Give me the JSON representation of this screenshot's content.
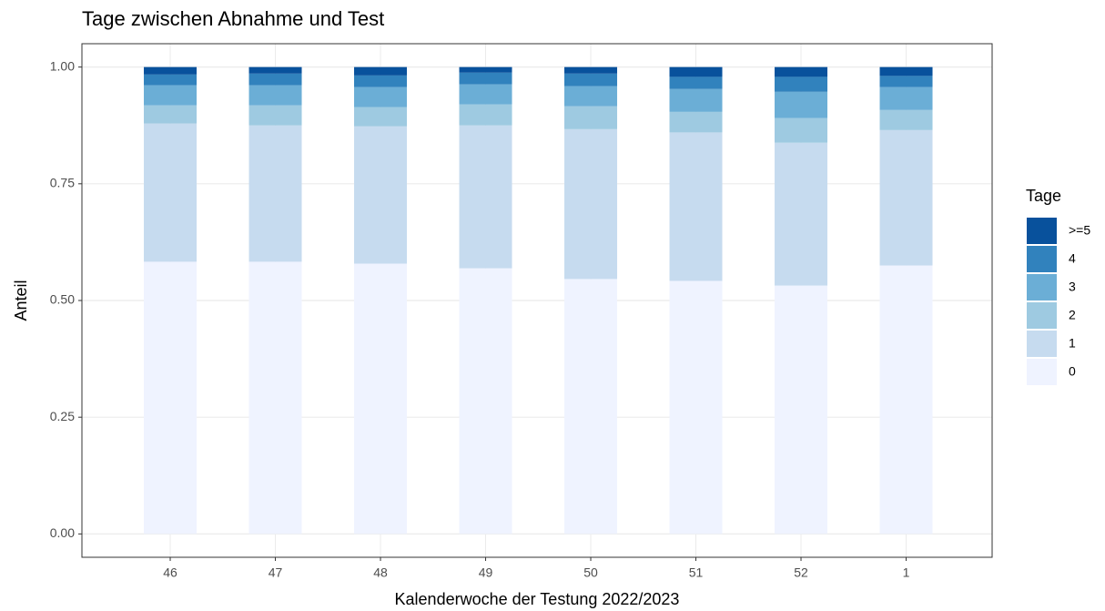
{
  "chart_data": {
    "type": "stacked_bar",
    "title": "Tage zwischen Abnahme und Test",
    "x_label": "Kalenderwoche der Testung 2022/2023",
    "y_label": "Anteil",
    "legend_title": "Tage",
    "categories": [
      "46",
      "47",
      "48",
      "49",
      "50",
      "51",
      "52",
      "1"
    ],
    "series": [
      {
        "name": "0",
        "color": "#eff3ff",
        "values": [
          0.583,
          0.583,
          0.579,
          0.569,
          0.546,
          0.542,
          0.532,
          0.575
        ]
      },
      {
        "name": "1",
        "color": "#c6dbef",
        "values": [
          0.296,
          0.292,
          0.294,
          0.306,
          0.321,
          0.318,
          0.306,
          0.29
        ]
      },
      {
        "name": "2",
        "color": "#9ecae1",
        "values": [
          0.039,
          0.043,
          0.041,
          0.045,
          0.049,
          0.044,
          0.053,
          0.043
        ]
      },
      {
        "name": "3",
        "color": "#6baed6",
        "values": [
          0.043,
          0.043,
          0.043,
          0.043,
          0.043,
          0.049,
          0.056,
          0.049
        ]
      },
      {
        "name": "4",
        "color": "#3182bd",
        "values": [
          0.023,
          0.025,
          0.025,
          0.025,
          0.027,
          0.026,
          0.032,
          0.024
        ]
      },
      {
        "name": ">=5",
        "color": "#08519c",
        "values": [
          0.016,
          0.014,
          0.018,
          0.012,
          0.014,
          0.021,
          0.021,
          0.019
        ]
      }
    ],
    "ylim": [
      -0.05,
      1.05
    ],
    "yticks": [
      {
        "value": 0,
        "label": "0.00"
      },
      0.25,
      {
        "value": 0.5,
        "label": "0.50"
      },
      0.75,
      {
        "value": 1,
        "label": "1.00"
      }
    ],
    "grid": true,
    "legend_position": "right"
  }
}
